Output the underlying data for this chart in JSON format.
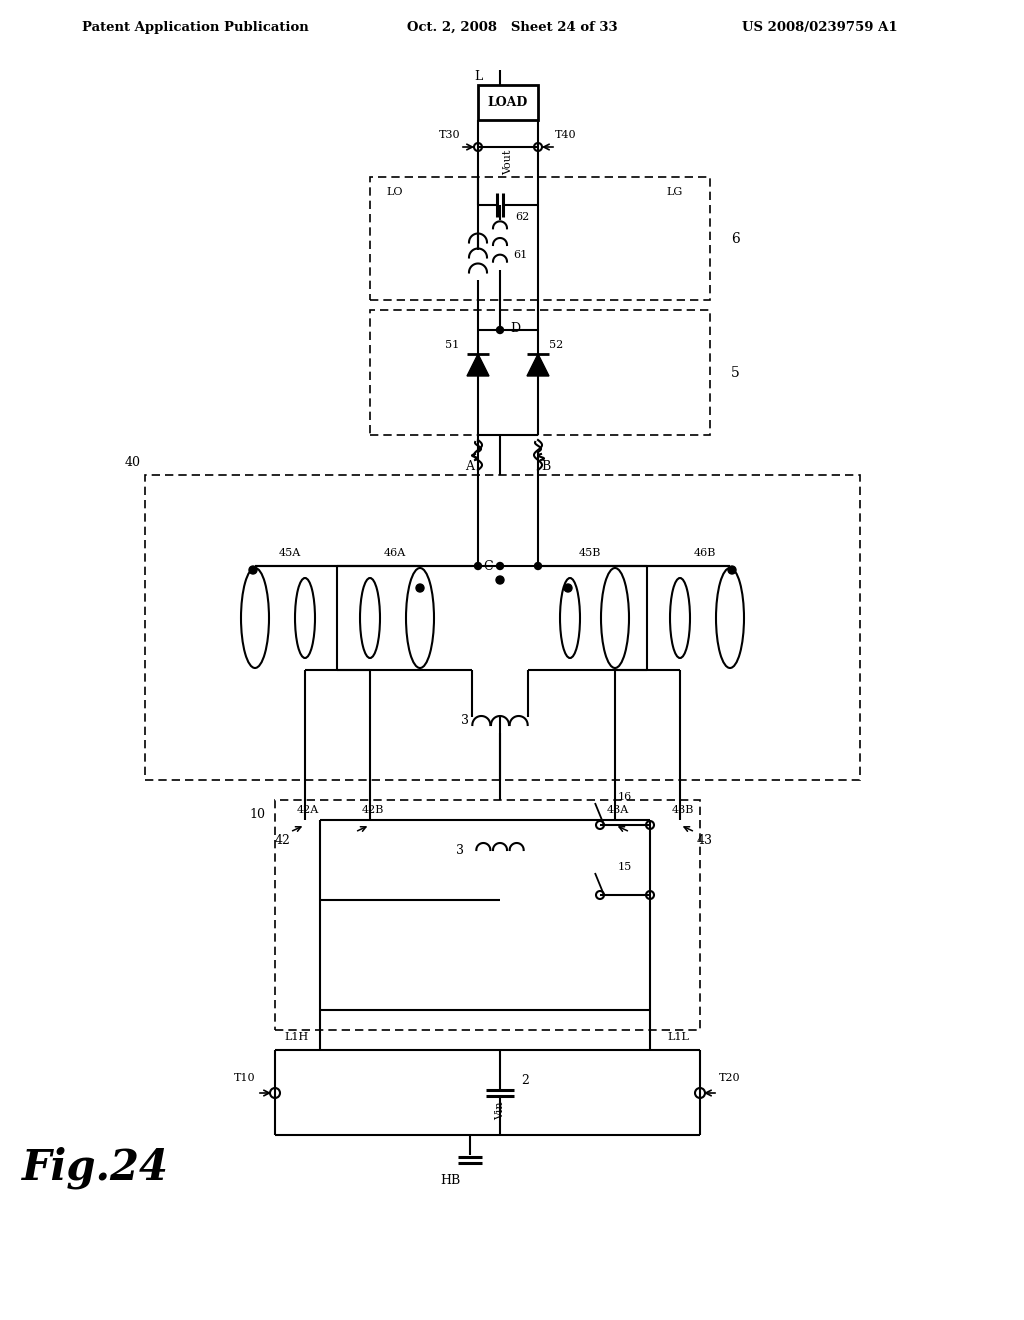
{
  "title_left": "Patent Application Publication",
  "title_center": "Oct. 2, 2008   Sheet 24 of 33",
  "title_right": "US 2008/0239759 A1",
  "fig_label": "Fig.24",
  "bg": "#ffffff"
}
